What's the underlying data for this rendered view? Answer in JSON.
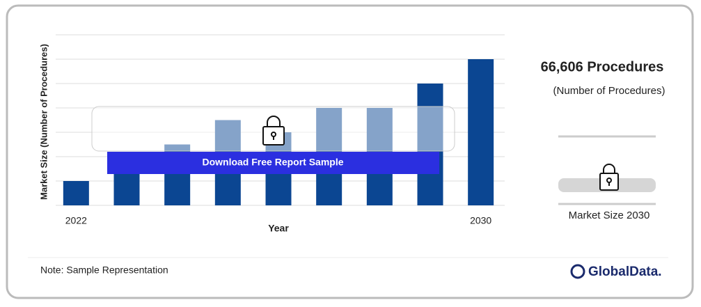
{
  "chart_data": {
    "type": "bar",
    "categories": [
      "2022",
      null,
      null,
      null,
      null,
      null,
      null,
      null,
      "2030"
    ],
    "values": [
      1,
      2,
      2.5,
      3.5,
      3,
      4,
      4,
      5,
      6
    ],
    "color": "#0b4692",
    "ylim": [
      0,
      7
    ],
    "yticks": [
      0,
      1,
      2,
      3,
      4,
      5,
      6,
      7
    ],
    "grid": true,
    "x_label": "Year",
    "y_label": "Market Size (Number of Procedures)"
  },
  "panel": {
    "headline": "66,606 Procedures",
    "unit": "(Number of Procedures)",
    "caption": "Market Size 2030"
  },
  "button": "Download Free Report Sample",
  "note": "Note: Sample Representation",
  "brand": "GlobalData."
}
